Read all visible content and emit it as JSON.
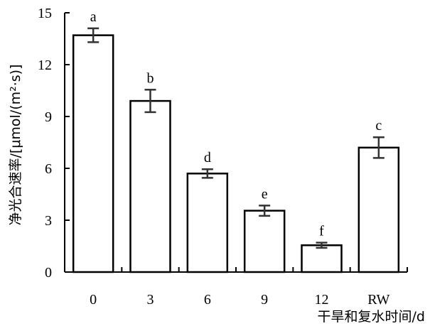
{
  "chart_data": {
    "type": "bar",
    "categories": [
      "0",
      "3",
      "6",
      "9",
      "12",
      "RW"
    ],
    "values": [
      13.7,
      9.9,
      5.7,
      3.55,
      1.55,
      7.2
    ],
    "errors": [
      0.4,
      0.65,
      0.25,
      0.3,
      0.15,
      0.6
    ],
    "significance": [
      "a",
      "b",
      "d",
      "e",
      "f",
      "c"
    ],
    "xlabel": "干旱和复水时间/d",
    "ylabel": "净光合速率/[μmol/(m²·s)]",
    "ylim": [
      0,
      15
    ],
    "yticks": [
      "0",
      "3",
      "6",
      "9",
      "12",
      "15"
    ],
    "grid": false,
    "bar_fill": "#ffffff",
    "bar_stroke": "#000000",
    "error_bar_color": "#333333"
  }
}
